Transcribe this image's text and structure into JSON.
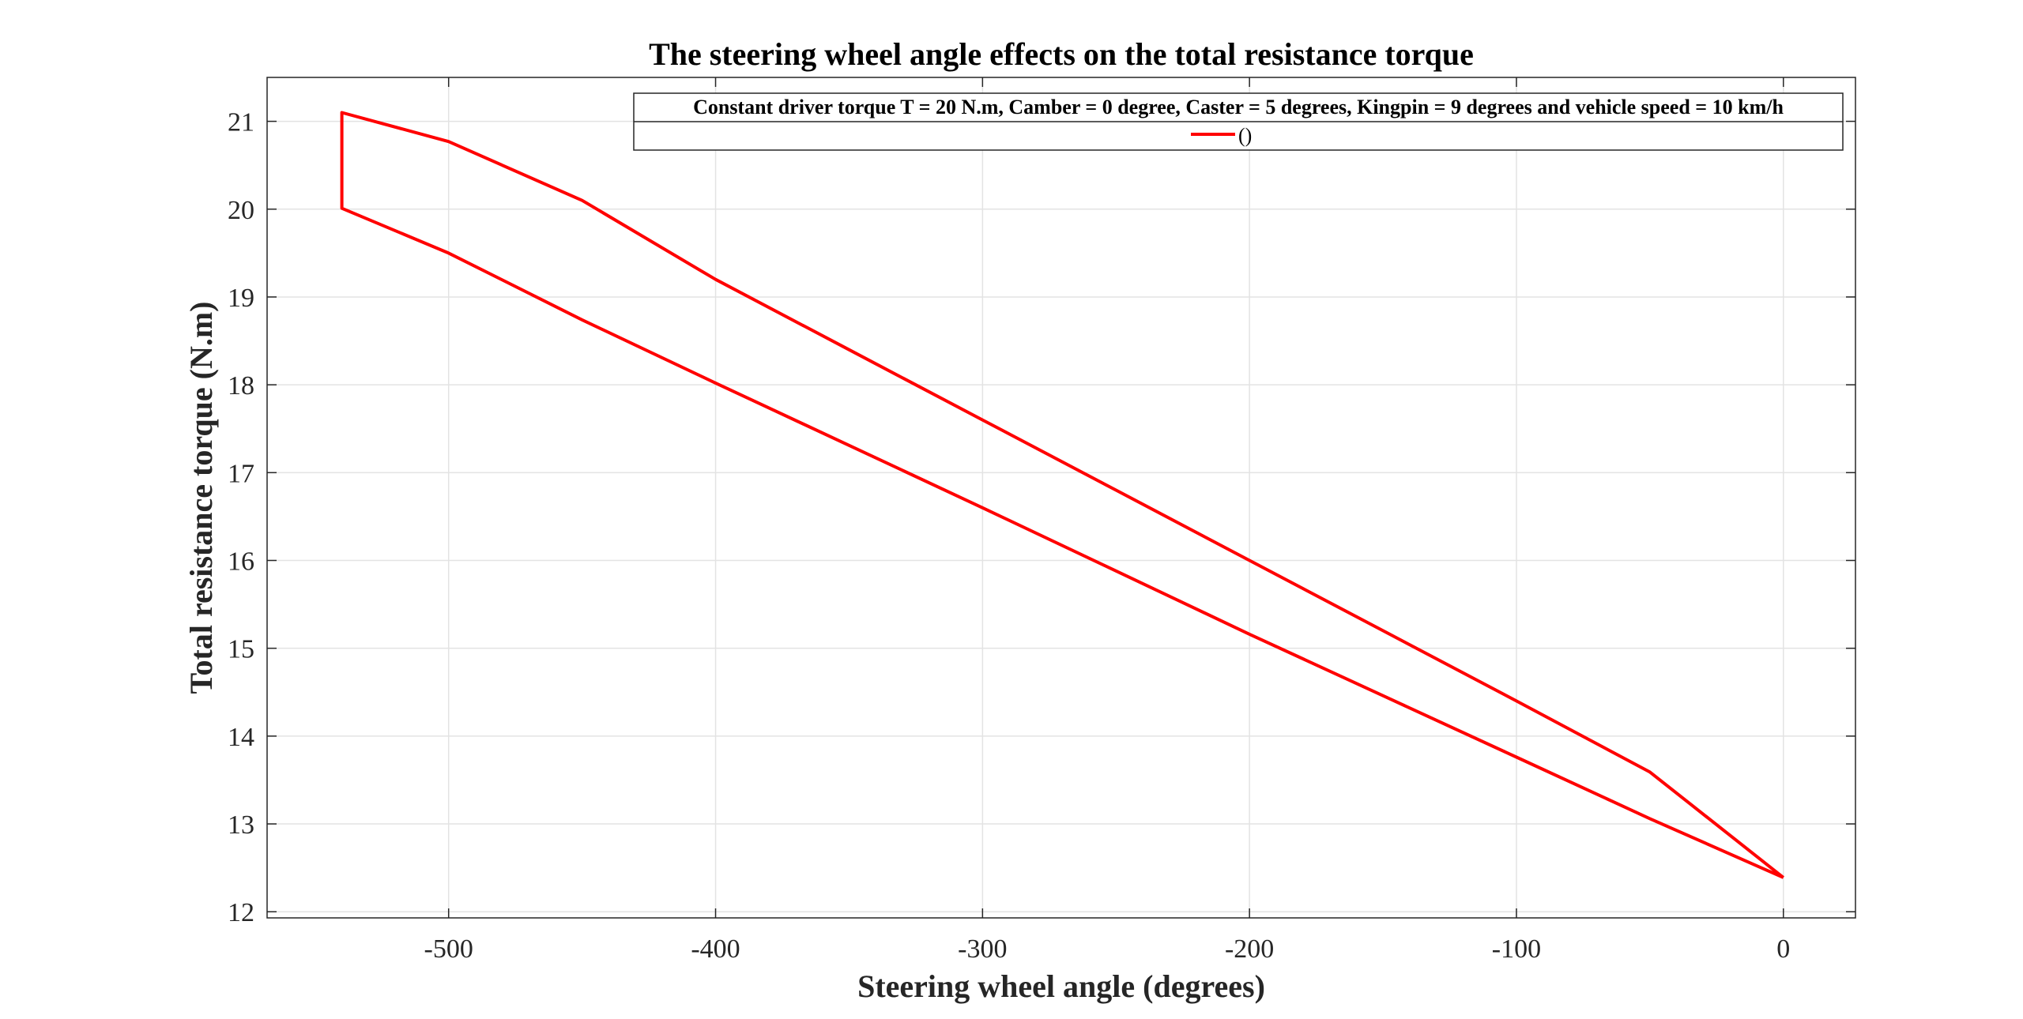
{
  "chart_data": {
    "type": "line",
    "title": "The steering wheel angle effects on the total resistance torque",
    "xlabel": "Steering wheel angle (degrees)",
    "ylabel": "Total resistance torque (N.m)",
    "xlim": [
      -568,
      27
    ],
    "ylim": [
      11.93,
      21.5
    ],
    "xticks": [
      -500,
      -400,
      -300,
      -200,
      -100,
      0
    ],
    "xtick_labels": [
      "-500",
      "-400",
      "-300",
      "-200",
      "-100",
      "0"
    ],
    "yticks": [
      12,
      13,
      14,
      15,
      16,
      17,
      18,
      19,
      20,
      21
    ],
    "ytick_labels": [
      "12",
      "13",
      "14",
      "15",
      "16",
      "17",
      "18",
      "19",
      "20",
      "21"
    ],
    "grid": true,
    "legend": {
      "title": "Constant driver torque  T = 20 N.m, Camber = 0 degree, Caster = 5 degrees, Kingpin = 9 degrees and vehicle speed = 10 km/h",
      "placement": "top-right",
      "entries": [
        "()"
      ]
    },
    "series": [
      {
        "color": "#ff0000",
        "x": [
          0,
          -50,
          -100,
          -150,
          -200,
          -250,
          -300,
          -350,
          -400,
          -450,
          -500,
          -540,
          -540,
          -500,
          -450,
          -400,
          -350,
          -300,
          -250,
          -200,
          -150,
          -100,
          -50,
          0
        ],
        "y": [
          12.39,
          13.06,
          13.76,
          14.46,
          15.16,
          15.88,
          16.6,
          17.31,
          18.02,
          18.74,
          19.5,
          20.01,
          21.1,
          20.77,
          20.1,
          19.2,
          18.4,
          17.6,
          16.8,
          16.0,
          15.2,
          14.4,
          13.59,
          12.39
        ]
      }
    ]
  }
}
